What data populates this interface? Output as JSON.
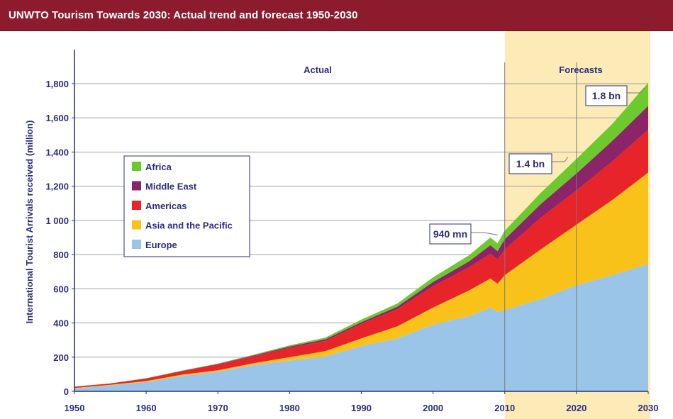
{
  "page": {
    "title": "UNWTO Tourism Towards 2030: Actual trend and forecast 1950-2030"
  },
  "colors": {
    "title_bar": "#8c1b2e",
    "axis_text": "#2b2d7f",
    "forecast_band": "#fcebb6",
    "callout_border": "#2b2d7f"
  },
  "chart_data": {
    "type": "area",
    "stacked": true,
    "title": "UNWTO Tourism Towards 2030: Actual trend and forecast 1950-2030",
    "xlabel": "",
    "ylabel": "International Tourist Arrivals received (million)",
    "xlim": [
      1950,
      2030
    ],
    "ylim": [
      0,
      1800
    ],
    "x_ticks": [
      "1950",
      "1960",
      "1970",
      "1980",
      "1990",
      "2000",
      "2010",
      "2020",
      "2030"
    ],
    "y_ticks": [
      "0",
      "200",
      "400",
      "600",
      "800",
      "1 000",
      "1,200",
      "1,400",
      "1,600",
      "1,800"
    ],
    "grid": true,
    "legend_position": "upper-left",
    "x": [
      1950,
      1955,
      1960,
      1965,
      1970,
      1975,
      1980,
      1985,
      1990,
      1995,
      2000,
      2005,
      2008,
      2009,
      2010,
      2015,
      2020,
      2025,
      2030
    ],
    "series": [
      {
        "name": "Europe",
        "color": "#9ac4e8",
        "values": [
          18,
          35,
          55,
          90,
          115,
          155,
          180,
          205,
          265,
          310,
          390,
          440,
          490,
          465,
          475,
          540,
          620,
          680,
          745
        ]
      },
      {
        "name": "Asia and the Pacific",
        "color": "#f9c21a",
        "values": [
          2,
          3,
          5,
          8,
          8,
          10,
          20,
          30,
          45,
          70,
          100,
          150,
          170,
          165,
          205,
          290,
          355,
          440,
          535
        ]
      },
      {
        "name": "Americas",
        "color": "#e8242b",
        "values": [
          7,
          8,
          15,
          20,
          35,
          40,
          55,
          60,
          85,
          100,
          125,
          135,
          145,
          140,
          150,
          185,
          200,
          225,
          250
        ]
      },
      {
        "name": "Middle East",
        "color": "#8b2468",
        "values": [
          0,
          0,
          1,
          2,
          2,
          5,
          7,
          10,
          10,
          15,
          25,
          35,
          50,
          50,
          60,
          80,
          100,
          120,
          140
        ]
      },
      {
        "name": "Africa",
        "color": "#6cc92e",
        "values": [
          1,
          1,
          1,
          2,
          3,
          5,
          7,
          10,
          15,
          18,
          27,
          35,
          45,
          45,
          50,
          65,
          85,
          100,
          135
        ]
      }
    ],
    "regions": [
      {
        "label": "Actual",
        "from": 1950,
        "to": 2010
      },
      {
        "label": "Forecasts",
        "from": 2010,
        "to": 2030
      }
    ],
    "annotations": [
      {
        "text": "940 mn",
        "x": 2010,
        "y": 940
      },
      {
        "text": "1.4 bn",
        "x": 2020,
        "y": 1400
      },
      {
        "text": "1.8 bn",
        "x": 2030,
        "y": 1800
      }
    ]
  }
}
